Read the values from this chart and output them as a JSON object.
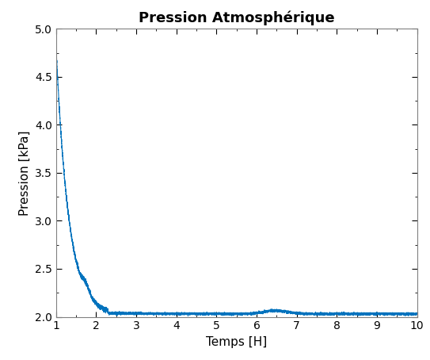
{
  "title": "Pression Atmosphérique",
  "xlabel": "Temps [H]",
  "ylabel": "Pression [kPa]",
  "xlim": [
    1,
    10
  ],
  "ylim": [
    2,
    5
  ],
  "xticks": [
    1,
    2,
    3,
    4,
    5,
    6,
    7,
    8,
    9,
    10
  ],
  "yticks": [
    2,
    2.5,
    3,
    3.5,
    4,
    4.5,
    5
  ],
  "line_color": "#0072BD",
  "line_width": 0.8,
  "background_color": "#ffffff",
  "title_fontsize": 13,
  "label_fontsize": 11,
  "tick_fontsize": 10,
  "spine_color": "#808080"
}
